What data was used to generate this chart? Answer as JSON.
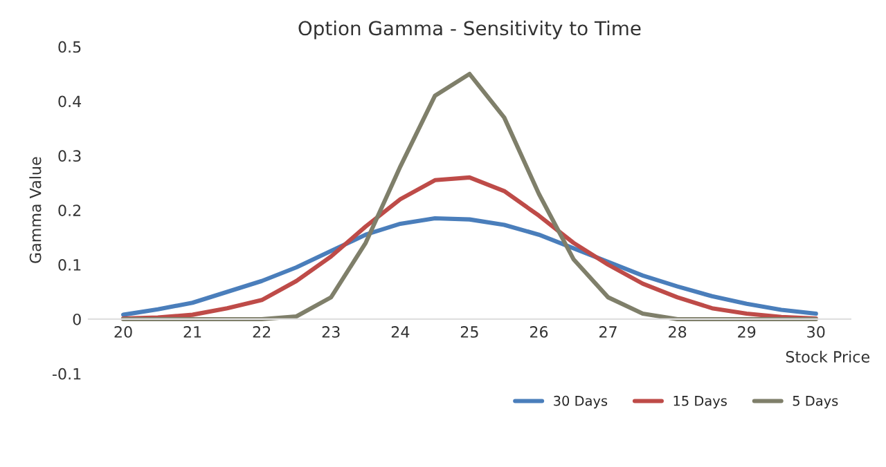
{
  "chart_data": {
    "type": "line",
    "title": "Option Gamma - Sensitivity to Time",
    "xlabel": "Stock Price",
    "ylabel": "Gamma Value",
    "x": [
      20,
      20.5,
      21,
      21.5,
      22,
      22.5,
      23,
      23.5,
      24,
      24.5,
      25,
      25.5,
      26,
      26.5,
      27,
      27.5,
      28,
      28.5,
      29,
      29.5,
      30
    ],
    "series": [
      {
        "name": "30 Days",
        "color": "#4a7ebb",
        "values": [
          0.008,
          0.018,
          0.03,
          0.05,
          0.07,
          0.095,
          0.125,
          0.155,
          0.175,
          0.185,
          0.183,
          0.173,
          0.155,
          0.13,
          0.105,
          0.08,
          0.06,
          0.042,
          0.028,
          0.017,
          0.01
        ]
      },
      {
        "name": "15 Days",
        "color": "#be4b48",
        "values": [
          0.001,
          0.003,
          0.008,
          0.02,
          0.035,
          0.07,
          0.115,
          0.17,
          0.22,
          0.255,
          0.26,
          0.235,
          0.19,
          0.14,
          0.1,
          0.065,
          0.04,
          0.02,
          0.01,
          0.004,
          0.001
        ]
      },
      {
        "name": "5 Days",
        "color": "#7f7f6a",
        "values": [
          0,
          0,
          0,
          0,
          0,
          0.005,
          0.04,
          0.14,
          0.28,
          0.41,
          0.45,
          0.37,
          0.23,
          0.11,
          0.04,
          0.01,
          0,
          0,
          0,
          0,
          0
        ]
      }
    ],
    "xlim": [
      19.5,
      30.5
    ],
    "xticks": [
      20,
      21,
      22,
      23,
      24,
      25,
      26,
      27,
      28,
      29,
      30
    ],
    "ylim": [
      -0.1,
      0.5
    ],
    "yticks": [
      -0.1,
      0,
      0.1,
      0.2,
      0.3,
      0.4,
      0.5
    ],
    "legend": "bottom right",
    "grid": false,
    "marker": "none",
    "line_style": "solid"
  }
}
